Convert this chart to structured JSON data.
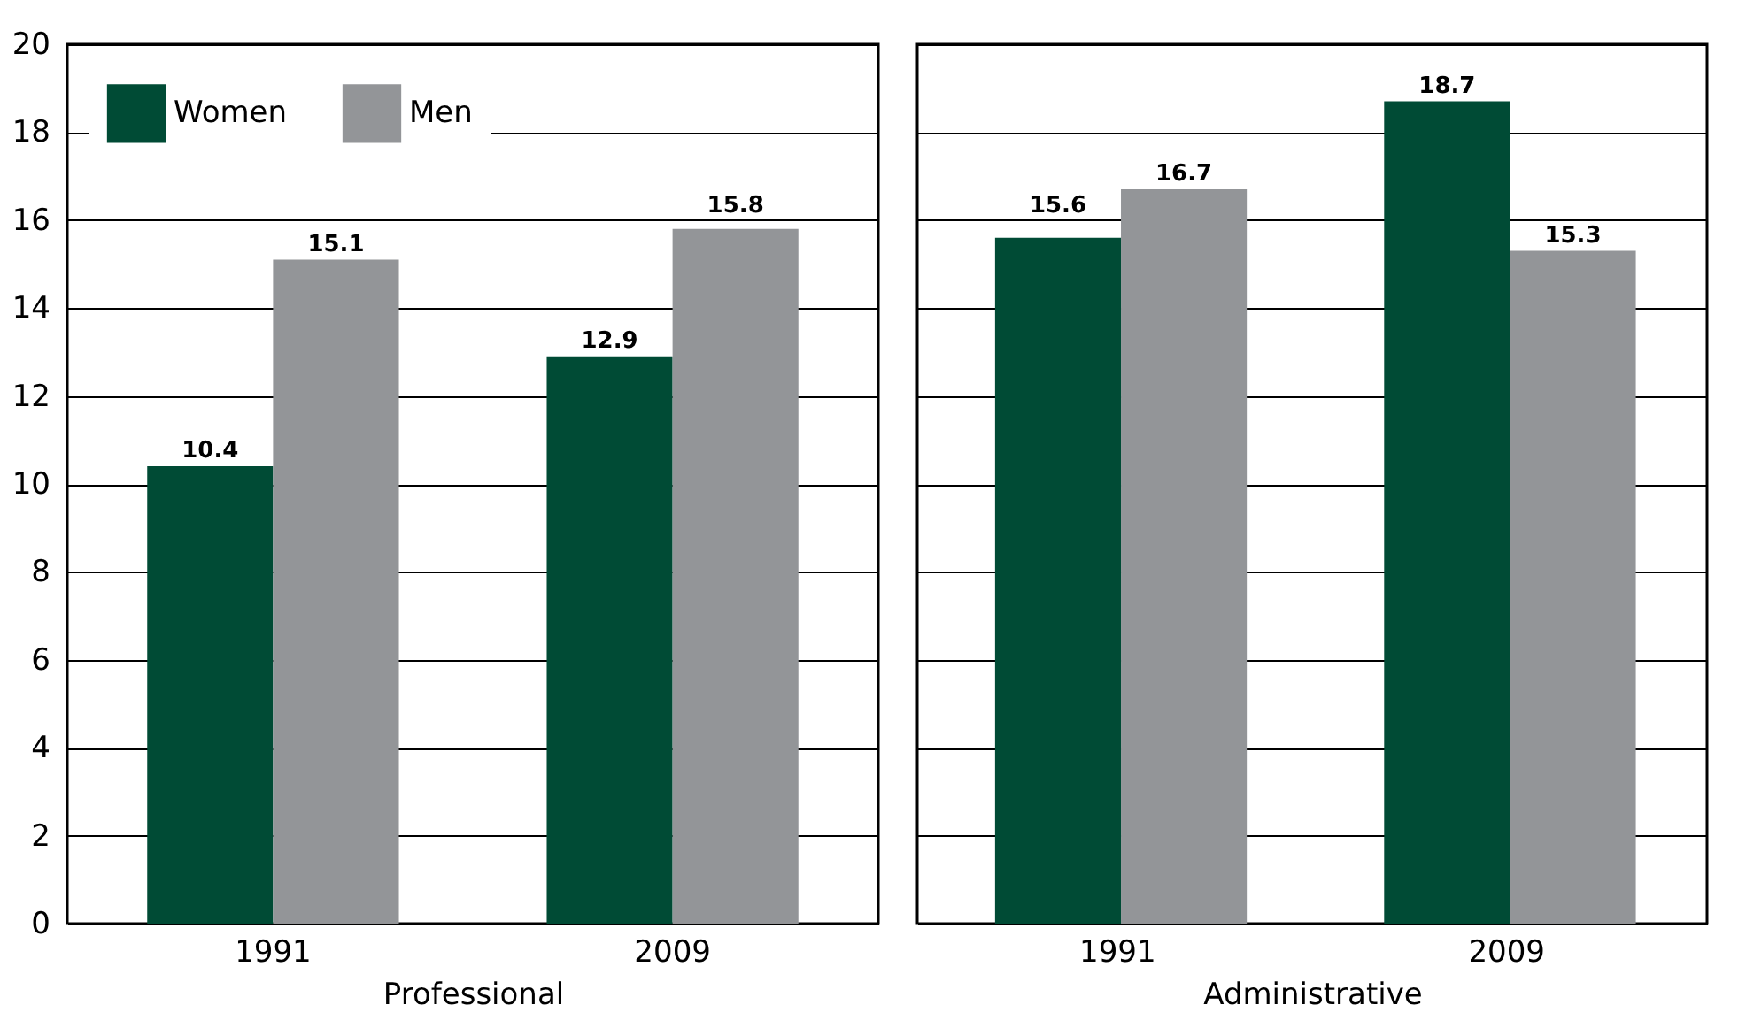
{
  "chart_data": [
    {
      "type": "bar",
      "xlabel": "Professional",
      "categories": [
        "1991",
        "2009"
      ],
      "series": [
        {
          "name": "Women",
          "color": "#004b35",
          "values": [
            10.4,
            12.9
          ]
        },
        {
          "name": "Men",
          "color": "#939598",
          "values": [
            15.1,
            15.8
          ]
        }
      ],
      "ylim": [
        0,
        20
      ],
      "yticks": [
        0,
        2,
        4,
        6,
        8,
        10,
        12,
        14,
        16,
        18,
        20
      ],
      "grid": "y",
      "data_labels": true,
      "legend": "top left"
    },
    {
      "type": "bar",
      "xlabel": "Administrative",
      "categories": [
        "1991",
        "2009"
      ],
      "series": [
        {
          "name": "Women",
          "color": "#004b35",
          "values": [
            15.6,
            18.7
          ]
        },
        {
          "name": "Men",
          "color": "#939598",
          "values": [
            16.7,
            15.3
          ]
        }
      ],
      "ylim": [
        0,
        20
      ],
      "yticks": [
        0,
        2,
        4,
        6,
        8,
        10,
        12,
        14,
        16,
        18,
        20
      ],
      "grid": "y",
      "data_labels": true,
      "tick_labels": "x"
    }
  ]
}
